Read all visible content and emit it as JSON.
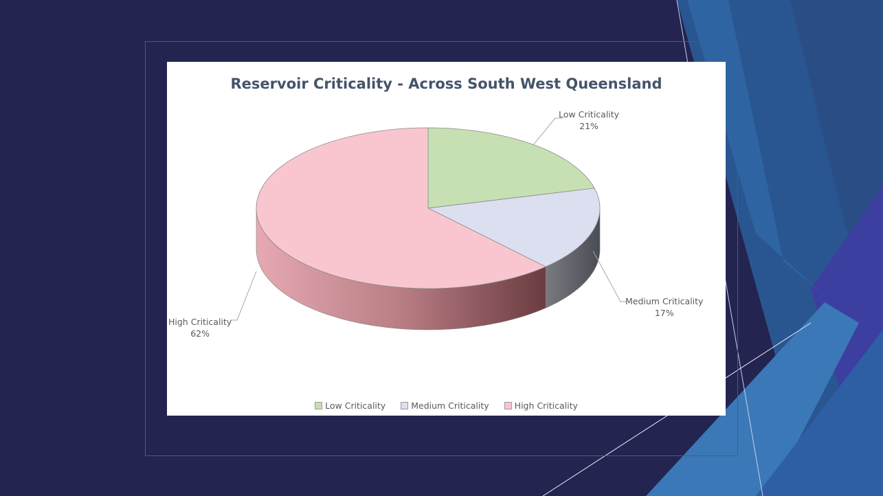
{
  "chart_data": {
    "type": "pie",
    "title": "Reservoir Criticality  - Across South West Queensland",
    "categories": [
      "Low Criticality",
      "Medium Criticality",
      "High Criticality"
    ],
    "values": [
      21,
      17,
      62
    ],
    "value_labels": [
      "21%",
      "17%",
      "62%"
    ],
    "colors": [
      "#c6e0b4",
      "#dcdff0",
      "#f9c6cf"
    ],
    "style": "3d",
    "legend_position": "bottom"
  },
  "labels": {
    "low": {
      "name": "Low Criticality",
      "value": "21%"
    },
    "medium": {
      "name": "Medium Criticality",
      "value": "17%"
    },
    "high": {
      "name": "High Criticality",
      "value": "62%"
    }
  },
  "legend": [
    "Low Criticality",
    "Medium Criticality",
    "High Criticality"
  ]
}
